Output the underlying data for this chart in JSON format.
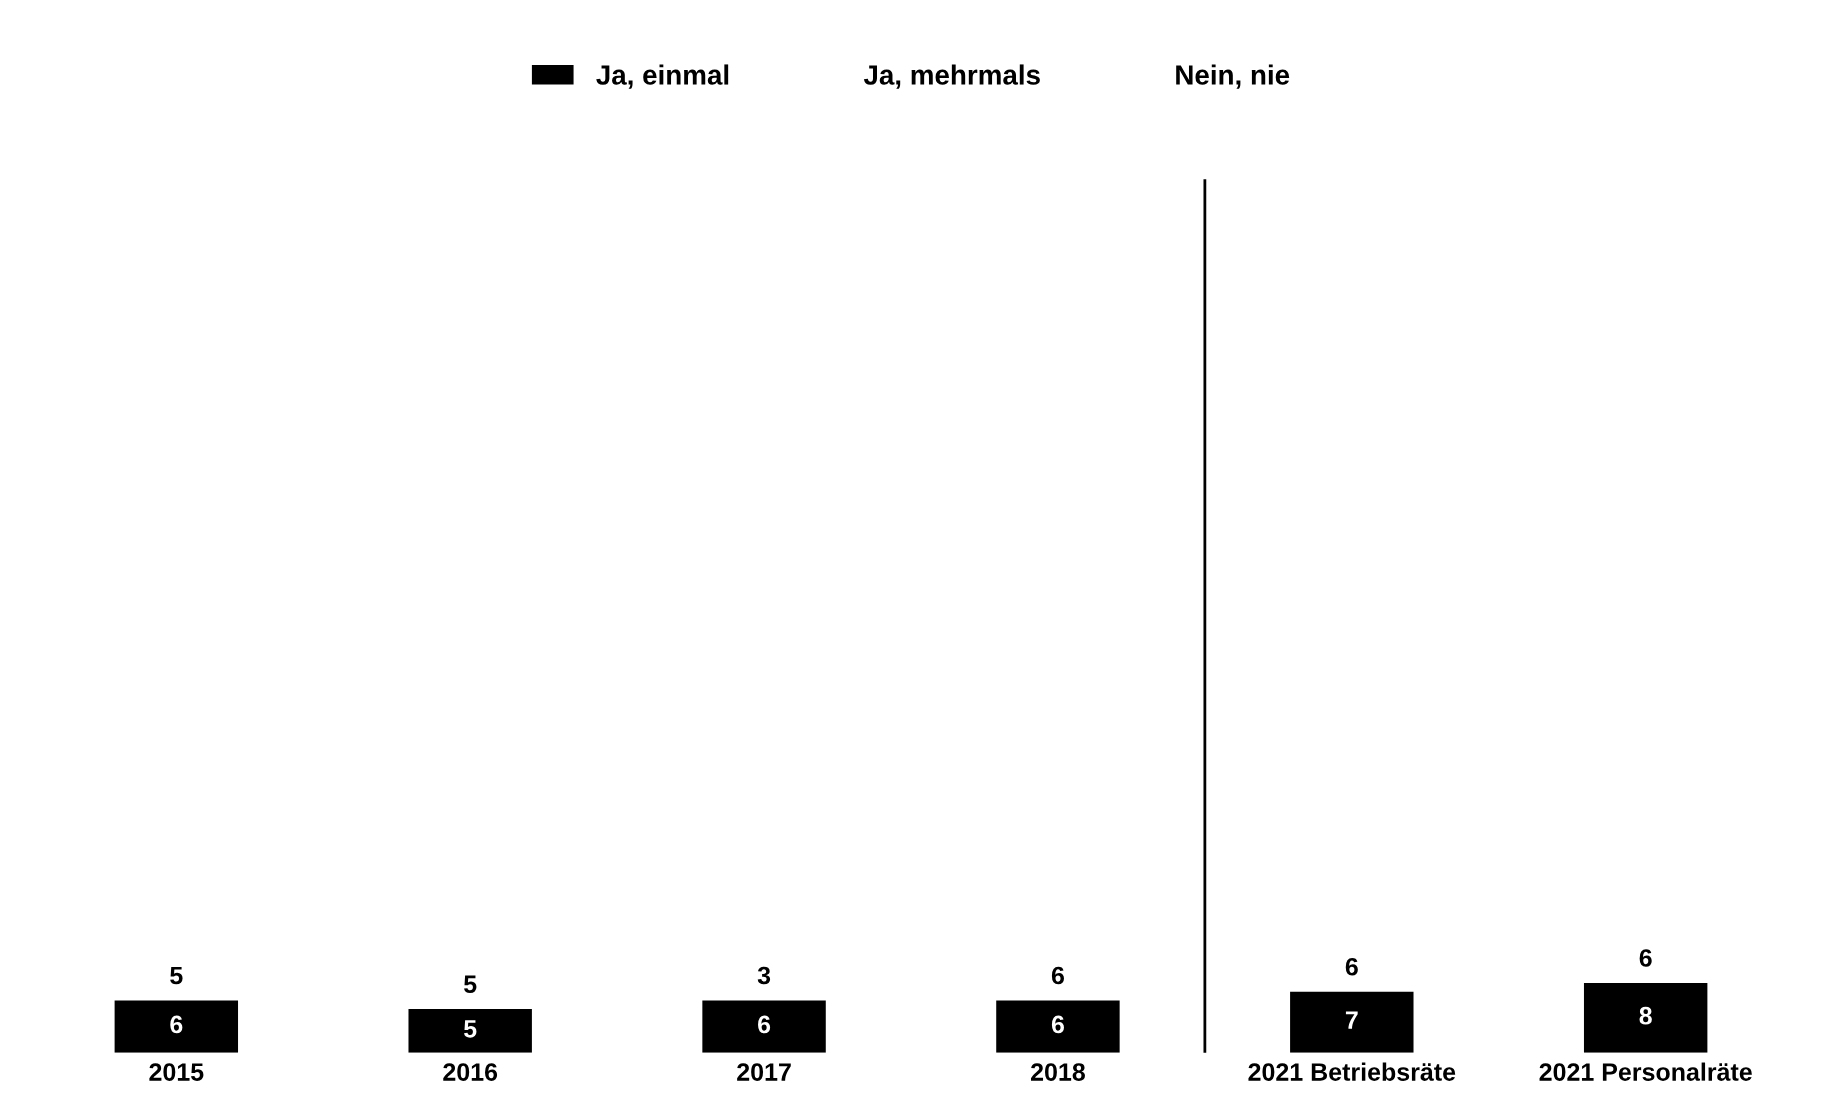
{
  "chart_data": {
    "type": "bar",
    "categories": [
      "2015",
      "2016",
      "2017",
      "2018",
      "2021 Betriebsräte",
      "2021 Personalräte"
    ],
    "series": [
      {
        "name": "Ja, einmal",
        "color": "#000000",
        "values": [
          6,
          5,
          6,
          6,
          7,
          8
        ]
      }
    ],
    "data_labels": true,
    "ylim": [
      0,
      100
    ],
    "legend": "top",
    "annotations": [
      "Ja, mehrmals",
      "Nein, nie",
      "5",
      "5",
      "3",
      "6",
      "6",
      "6"
    ]
  }
}
